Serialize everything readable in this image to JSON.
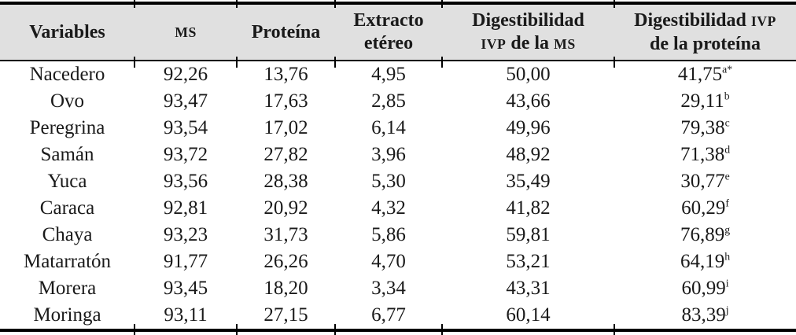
{
  "table": {
    "columns": [
      {
        "id": "variable",
        "label_lines": [
          [
            {
              "t": "Variables"
            }
          ]
        ]
      },
      {
        "id": "ms",
        "label_lines": [
          [
            {
              "t": "MS",
              "sc": true
            }
          ]
        ]
      },
      {
        "id": "proteina",
        "label_lines": [
          [
            {
              "t": "Proteína"
            }
          ]
        ]
      },
      {
        "id": "extracto",
        "label_lines": [
          [
            {
              "t": "Extracto"
            }
          ],
          [
            {
              "t": "etéreo"
            }
          ]
        ]
      },
      {
        "id": "dig_ms",
        "label_lines": [
          [
            {
              "t": "Digestibilidad"
            }
          ],
          [
            {
              "t": "IVP",
              "sc": true
            },
            {
              "t": " de la "
            },
            {
              "t": "MS",
              "sc": true
            }
          ]
        ]
      },
      {
        "id": "dig_prot",
        "label_lines": [
          [
            {
              "t": "Digestibilidad "
            },
            {
              "t": "IVP",
              "sc": true
            }
          ],
          [
            {
              "t": "de la proteína"
            }
          ]
        ]
      }
    ],
    "rows": [
      {
        "variable": "Nacedero",
        "ms": "92,26",
        "proteina": "13,76",
        "extracto": "4,95",
        "dig_ms": "50,00",
        "dig_prot": "41,75",
        "dig_prot_sup": "a*"
      },
      {
        "variable": "Ovo",
        "ms": "93,47",
        "proteina": "17,63",
        "extracto": "2,85",
        "dig_ms": "43,66",
        "dig_prot": "29,11",
        "dig_prot_sup": "b"
      },
      {
        "variable": "Peregrina",
        "ms": "93,54",
        "proteina": "17,02",
        "extracto": "6,14",
        "dig_ms": "49,96",
        "dig_prot": "79,38",
        "dig_prot_sup": "c"
      },
      {
        "variable": "Samán",
        "ms": "93,72",
        "proteina": "27,82",
        "extracto": "3,96",
        "dig_ms": "48,92",
        "dig_prot": "71,38",
        "dig_prot_sup": "d"
      },
      {
        "variable": "Yuca",
        "ms": "93,56",
        "proteina": "28,38",
        "extracto": "5,30",
        "dig_ms": "35,49",
        "dig_prot": "30,77",
        "dig_prot_sup": "e"
      },
      {
        "variable": "Caraca",
        "ms": "92,81",
        "proteina": "20,92",
        "extracto": "4,32",
        "dig_ms": "41,82",
        "dig_prot": "60,29",
        "dig_prot_sup": "f"
      },
      {
        "variable": "Chaya",
        "ms": "93,23",
        "proteina": "31,73",
        "extracto": "5,86",
        "dig_ms": "59,81",
        "dig_prot": "76,89",
        "dig_prot_sup": "g"
      },
      {
        "variable": "Matarratón",
        "ms": "91,77",
        "proteina": "26,26",
        "extracto": "4,70",
        "dig_ms": "53,21",
        "dig_prot": "64,19",
        "dig_prot_sup": "h"
      },
      {
        "variable": "Morera",
        "ms": "93,45",
        "proteina": "18,20",
        "extracto": "3,34",
        "dig_ms": "43,31",
        "dig_prot": "60,99",
        "dig_prot_sup": "i"
      },
      {
        "variable": "Moringa",
        "ms": "93,11",
        "proteina": "27,15",
        "extracto": "6,77",
        "dig_ms": "60,14",
        "dig_prot": "83,39",
        "dig_prot_sup": "j"
      }
    ]
  },
  "colors": {
    "header_bg": "#e0e0e0",
    "rule": "#000000",
    "text": "#1a1a1a",
    "page_bg": "#ffffff"
  }
}
